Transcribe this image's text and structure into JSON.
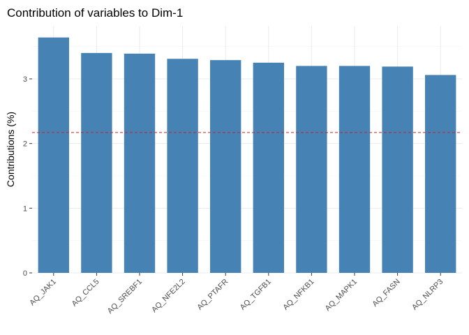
{
  "chart_data": {
    "type": "bar",
    "title": "Contribution of variables to Dim-1",
    "xlabel": "",
    "ylabel": "Contributions (%)",
    "categories": [
      "AQ_JAK1",
      "AQ_CCL5",
      "AQ_SREBF1",
      "AQ_NFE2L2",
      "AQ_PTAFR",
      "AQ_TGFB1",
      "AQ_NFKB1",
      "AQ_MAPK1",
      "AQ_FASN",
      "AQ_NLRP3"
    ],
    "values": [
      3.64,
      3.4,
      3.39,
      3.31,
      3.29,
      3.25,
      3.2,
      3.2,
      3.19,
      3.06
    ],
    "ylim": [
      0,
      3.82
    ],
    "yticks": [
      0,
      1,
      2,
      3
    ],
    "reference_line": 2.17,
    "bar_color": "#4682b4",
    "reference_line_color": "#cc2222",
    "grid": true,
    "legend": "none"
  }
}
